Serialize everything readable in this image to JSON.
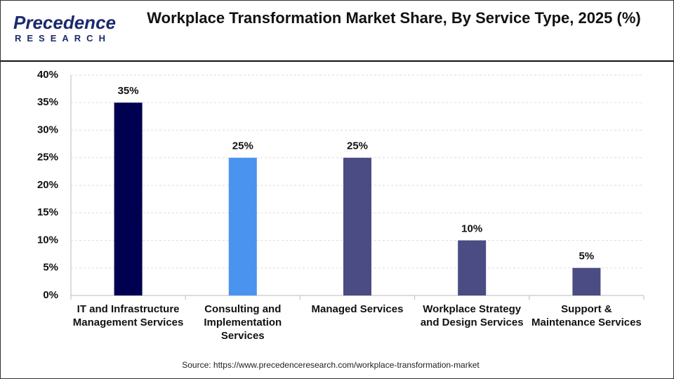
{
  "logo": {
    "name": "Precedence",
    "tagline": "RESEARCH"
  },
  "chart_data": {
    "type": "bar",
    "title": "Workplace Transformation Market Share, By Service Type, 2025 (%)",
    "categories": [
      "IT and Infrastructure Management Services",
      "Consulting and Implementation Services",
      "Managed Services",
      "Workplace Strategy and Design Services",
      "Support & Maintenance Services"
    ],
    "values": [
      35,
      25,
      25,
      10,
      5
    ],
    "value_labels": [
      "35%",
      "25%",
      "25%",
      "10%",
      "5%"
    ],
    "colors": [
      "#000050",
      "#4a94f0",
      "#4b4c84",
      "#4b4c84",
      "#4b4c84"
    ],
    "ylim": [
      0,
      40
    ],
    "yticks": [
      {
        "value": 0,
        "label": "0%"
      },
      {
        "value": 5,
        "label": "5%"
      },
      {
        "value": 10,
        "label": "10%"
      },
      {
        "value": 15,
        "label": "15%"
      },
      {
        "value": 20,
        "label": "20%"
      },
      {
        "value": 25,
        "label": "25%"
      },
      {
        "value": 30,
        "label": "30%"
      },
      {
        "value": 35,
        "label": "35%"
      },
      {
        "value": 40,
        "label": "40%"
      }
    ],
    "grid": true,
    "source": "Source: https://www.precedenceresearch.com/workplace-transformation-market"
  }
}
